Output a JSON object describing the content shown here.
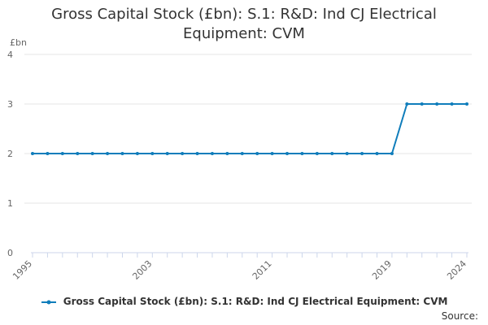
{
  "title_lines": [
    "Gross Capital Stock (£bn): S.1: R&D: Ind CJ Electrical",
    "Equipment: CVM"
  ],
  "source_label": "Source:",
  "colors": {
    "series": "#0f7dbb",
    "grid": "#e6e6e6",
    "axis": "#ccd6eb",
    "text": "#333333",
    "tick_text": "#666666"
  },
  "chart_data": {
    "type": "line",
    "title": "Gross Capital Stock (£bn): S.1: R&D: Ind CJ Electrical Equipment: CVM",
    "ylabel": "£bn",
    "xlabel": "",
    "ylim": [
      0,
      4
    ],
    "xlim": [
      1995,
      2024
    ],
    "y_ticks": [
      0,
      1,
      2,
      3,
      4
    ],
    "x_ticks": [
      1995,
      2003,
      2011,
      2019,
      2024
    ],
    "grid": true,
    "legend": "bottom",
    "series": [
      {
        "name": "Gross Capital Stock (£bn): S.1: R&D: Ind CJ Electrical Equipment: CVM",
        "x": [
          1995,
          1996,
          1997,
          1998,
          1999,
          2000,
          2001,
          2002,
          2003,
          2004,
          2005,
          2006,
          2007,
          2008,
          2009,
          2010,
          2011,
          2012,
          2013,
          2014,
          2015,
          2016,
          2017,
          2018,
          2019,
          2020,
          2021,
          2022,
          2023,
          2024
        ],
        "values": [
          2,
          2,
          2,
          2,
          2,
          2,
          2,
          2,
          2,
          2,
          2,
          2,
          2,
          2,
          2,
          2,
          2,
          2,
          2,
          2,
          2,
          2,
          2,
          2,
          2,
          3,
          3,
          3,
          3,
          3
        ]
      }
    ]
  }
}
